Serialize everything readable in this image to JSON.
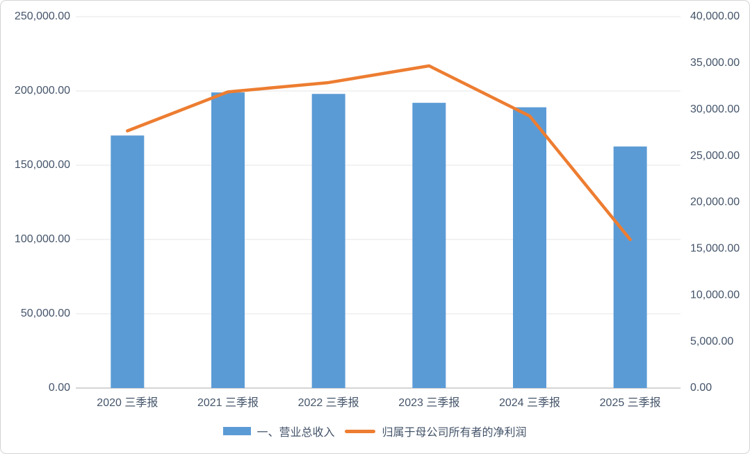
{
  "chart_data": {
    "type": "combo",
    "categories": [
      "2020 三季报",
      "2021 三季报",
      "2022 三季报",
      "2023 三季报",
      "2024 三季报",
      "2025 三季报"
    ],
    "series": [
      {
        "name": "一、营业总收入",
        "type": "bar",
        "axis": "left",
        "color": "#5B9BD5",
        "values": [
          170000,
          199000,
          198000,
          192000,
          189000,
          162600
        ]
      },
      {
        "name": "归属于母公司所有者的净利润",
        "type": "line",
        "axis": "right",
        "color": "#ED7D31",
        "values": [
          27700,
          31900,
          32900,
          34700,
          29300,
          16000
        ]
      }
    ],
    "left_axis": {
      "min": 0,
      "max": 250000,
      "step": 50000,
      "tick_labels": [
        "0.00",
        "50,000.00",
        "100,000.00",
        "150,000.00",
        "200,000.00",
        "250,000.00"
      ]
    },
    "right_axis": {
      "min": 0,
      "max": 40000,
      "step": 5000,
      "tick_labels": [
        "0.00",
        "5,000.00",
        "10,000.00",
        "15,000.00",
        "20,000.00",
        "25,000.00",
        "30,000.00",
        "35,000.00",
        "40,000.00"
      ]
    },
    "grid": true,
    "legend_position": "bottom"
  },
  "style": {
    "bar_color": "#5B9BD5",
    "line_color": "#ED7D31",
    "text_color": "#44546A",
    "gridline_color": "#E4E4E4",
    "axis_line_color": "#C6C6C6",
    "border_color": "#D4D4D4",
    "background": "#FFFFFF"
  }
}
